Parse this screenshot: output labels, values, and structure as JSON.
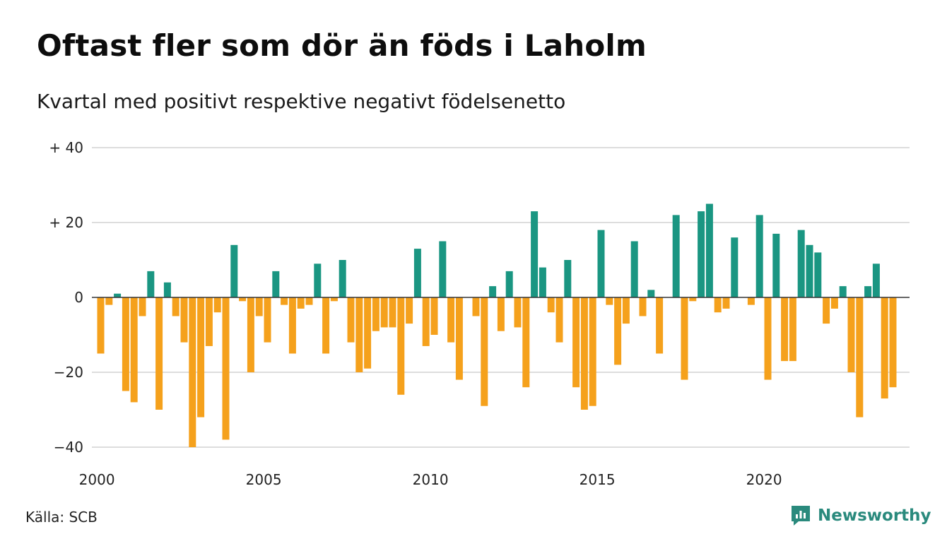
{
  "title": "Oftast fler som dör än föds i Laholm",
  "subtitle": "Kvartal med positivt respektive negativt födelsenetto",
  "source": "Källa: SCB",
  "brand": "Newsworthy",
  "colors": {
    "positive": "#1a9682",
    "negative": "#f5a11c",
    "grid": "#dddddd",
    "zero_line": "#333333",
    "brand": "#2a8a7d"
  },
  "chart_data": {
    "type": "bar",
    "x_start": "2000 Q1",
    "x_ticks": [
      {
        "label": "2000",
        "year": 2000
      },
      {
        "label": "2005",
        "year": 2005
      },
      {
        "label": "2010",
        "year": 2010
      },
      {
        "label": "2015",
        "year": 2015
      },
      {
        "label": "2020",
        "year": 2020
      }
    ],
    "y_ticks": [
      {
        "label": "+ 40",
        "value": 40
      },
      {
        "label": "+ 20",
        "value": 20
      },
      {
        "label": "0",
        "value": 0
      },
      {
        "label": "−20",
        "value": -20
      },
      {
        "label": "−40",
        "value": -40
      }
    ],
    "ylim": [
      -40,
      40
    ],
    "grid": true,
    "values": [
      -15,
      -2,
      1,
      -25,
      -28,
      -5,
      7,
      -30,
      4,
      -5,
      -12,
      -40,
      -32,
      -13,
      -4,
      -38,
      14,
      -1,
      -20,
      -5,
      -12,
      7,
      -2,
      -15,
      -3,
      -2,
      9,
      -15,
      -1,
      10,
      -12,
      -20,
      -19,
      -9,
      -8,
      -8,
      -26,
      -7,
      13,
      -13,
      -10,
      15,
      -12,
      -22,
      0,
      -5,
      -29,
      3,
      -9,
      7,
      -8,
      -24,
      23,
      8,
      -4,
      -12,
      10,
      -24,
      -30,
      -29,
      18,
      -2,
      -18,
      -7,
      15,
      -5,
      2,
      -15,
      0,
      22,
      -22,
      -1,
      23,
      25,
      -4,
      -3,
      16,
      0,
      -2,
      22,
      -22,
      17,
      -17,
      -17,
      18,
      14,
      12,
      -7,
      -3,
      3,
      -20,
      -32,
      3,
      9,
      -27,
      -24
    ]
  }
}
